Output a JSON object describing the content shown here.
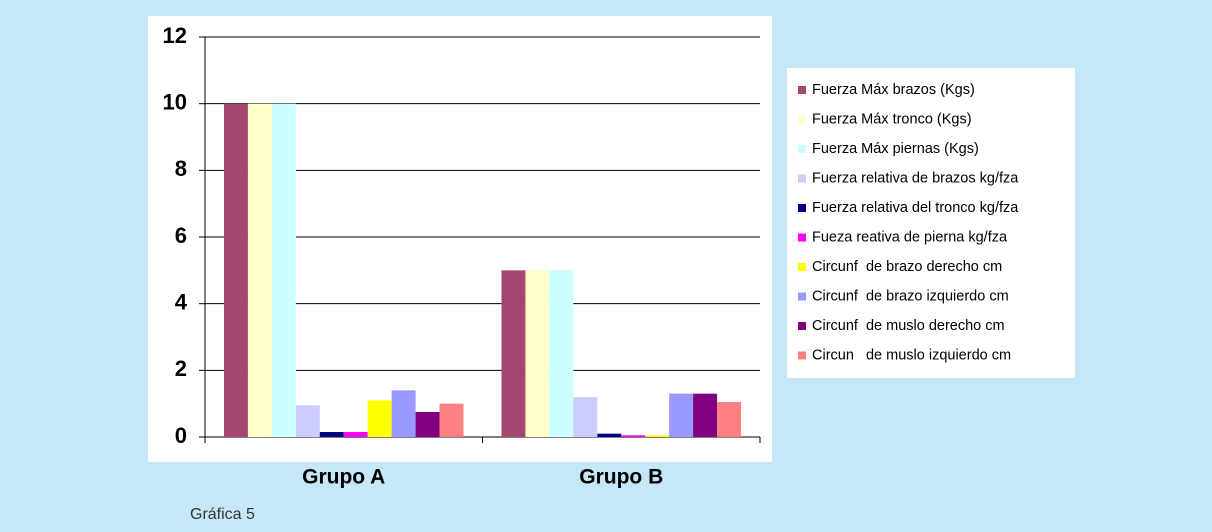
{
  "chart_data": {
    "type": "bar",
    "categories": [
      "Grupo A",
      "Grupo B"
    ],
    "series": [
      {
        "name": "Fuerza Máx brazos (Kgs)",
        "color": "#a3476f",
        "values": [
          10,
          5
        ]
      },
      {
        "name": "Fuerza Máx tronco (Kgs)",
        "color": "#ffffcc",
        "values": [
          10,
          5
        ]
      },
      {
        "name": "Fuerza Máx piernas (Kgs)",
        "color": "#ccffff",
        "values": [
          10,
          5
        ]
      },
      {
        "name": "Fuerza relativa de brazos kg/fza",
        "color": "#ccccff",
        "values": [
          0.95,
          1.2
        ]
      },
      {
        "name": "Fuerza relativa del tronco kg/fza",
        "color": "#000080",
        "values": [
          0.15,
          0.1
        ]
      },
      {
        "name": "Fueza reativa de pierna kg/fza",
        "color": "#ff00ff",
        "values": [
          0.15,
          0.05
        ]
      },
      {
        "name": "Circunf  de brazo derecho cm",
        "color": "#ffff00",
        "values": [
          1.1,
          0.05
        ]
      },
      {
        "name": "Circunf  de brazo izquierdo cm",
        "color": "#9999ff",
        "values": [
          1.4,
          1.3
        ]
      },
      {
        "name": "Circunf  de muslo derecho cm",
        "color": "#800080",
        "values": [
          0.75,
          1.3
        ]
      },
      {
        "name": "Circun   de muslo izquierdo cm",
        "color": "#ff8080",
        "values": [
          1.0,
          1.05
        ]
      }
    ],
    "ylim": [
      0,
      12
    ],
    "yticks": [
      0,
      2,
      4,
      6,
      8,
      10,
      12
    ],
    "grid": true,
    "legend": "right",
    "caption": "Gráfica 5"
  }
}
